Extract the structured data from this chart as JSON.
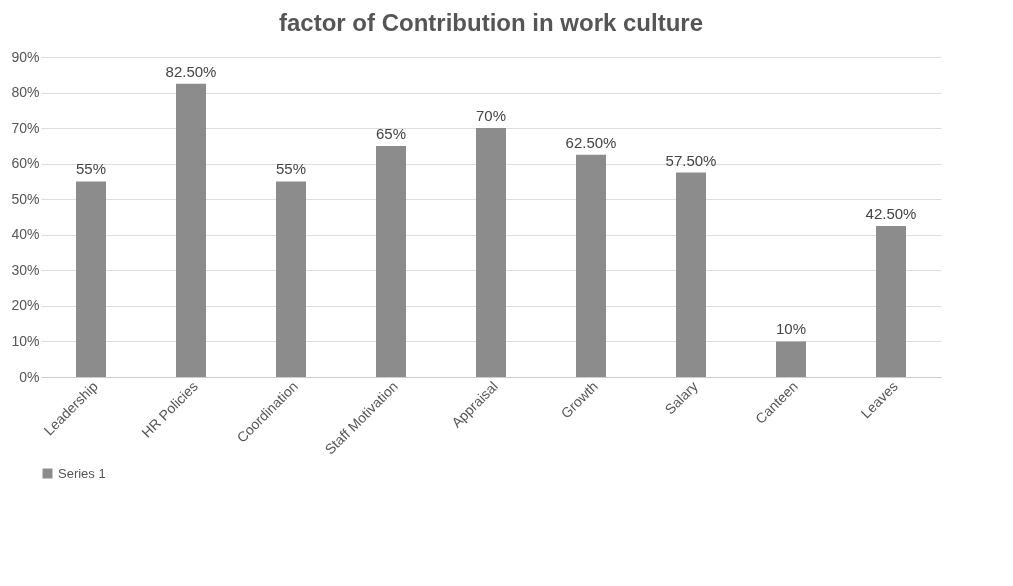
{
  "chart_data": {
    "type": "bar",
    "title": "factor of Contribution in work culture",
    "categories": [
      "Leadership",
      "HR Policies",
      "Coordination",
      "Staff Motivation",
      "Appraisal",
      "Growth",
      "Salary",
      "Canteen",
      "Leaves"
    ],
    "series": [
      {
        "name": "Series 1",
        "color": "#8c8c8c",
        "values": [
          55,
          82.5,
          55,
          65,
          70,
          62.5,
          57.5,
          10,
          42.5
        ],
        "value_labels": [
          "55%",
          "82.50%",
          "55%",
          "65%",
          "70%",
          "62.50%",
          "57.50%",
          "10%",
          "42.50%"
        ]
      }
    ],
    "ylim": [
      0,
      90
    ],
    "yticks": [
      {
        "value": 0,
        "label": "0%"
      },
      {
        "value": 10,
        "label": "10%"
      },
      {
        "value": 20,
        "label": "20%"
      },
      {
        "value": 30,
        "label": "30%"
      },
      {
        "value": 40,
        "label": "40%"
      },
      {
        "value": 50,
        "label": "50%"
      },
      {
        "value": 60,
        "label": "60%"
      },
      {
        "value": 70,
        "label": "70%"
      },
      {
        "value": 80,
        "label": "80%"
      },
      {
        "value": 90,
        "label": "90%"
      }
    ],
    "grid": "y",
    "legend": "bottom"
  }
}
